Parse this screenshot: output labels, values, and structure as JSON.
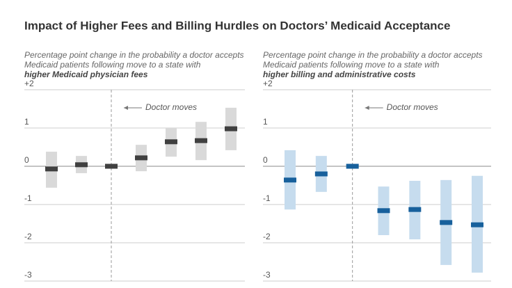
{
  "title": "Impact of Higher Fees and Billing Hurdles on Doctors’ Medicaid Acceptance",
  "chart_data": [
    {
      "type": "interval",
      "subtitle": [
        "Percentage point change in the probability a doctor accepts",
        "Medicaid patients following move to a state with",
        "higher Medicaid physician fees"
      ],
      "annotation": "Doctor moves",
      "categories": [
        null,
        null,
        null,
        null,
        null,
        null,
        null
      ],
      "values": [
        -0.07,
        0.04,
        0,
        0.22,
        0.64,
        0.67,
        0.98
      ],
      "lower": [
        -0.56,
        -0.18,
        null,
        -0.13,
        0.25,
        0.16,
        0.42
      ],
      "upper": [
        0.38,
        0.27,
        null,
        0.56,
        1.0,
        1.16,
        1.53
      ],
      "color": "#404040",
      "interval_color": "#d9d9d9",
      "ylim": [
        -3,
        2
      ],
      "yticks": [
        {
          "value": 2,
          "label": "+2"
        },
        1,
        0,
        -1,
        -2,
        -3
      ],
      "grid": true
    },
    {
      "type": "interval",
      "subtitle": [
        "Percentage point change in the probability a doctor accepts",
        "Medicaid patients following move to a state with",
        "higher billing and administrative costs"
      ],
      "annotation": "Doctor moves",
      "categories": [
        null,
        null,
        null,
        null,
        null,
        null,
        null
      ],
      "values": [
        -0.36,
        -0.2,
        0,
        -1.16,
        -1.13,
        -1.47,
        -1.53
      ],
      "lower": [
        -1.13,
        -0.67,
        null,
        -1.8,
        -1.91,
        -2.58,
        -2.78
      ],
      "upper": [
        0.42,
        0.27,
        null,
        -0.53,
        -0.38,
        -0.36,
        -0.25
      ],
      "color": "#17609c",
      "interval_color": "#c6dcee",
      "ylim": [
        -3,
        2
      ],
      "yticks": [
        {
          "value": 2,
          "label": "+2"
        },
        1,
        0,
        -1,
        -2,
        -3
      ],
      "grid": true
    }
  ]
}
